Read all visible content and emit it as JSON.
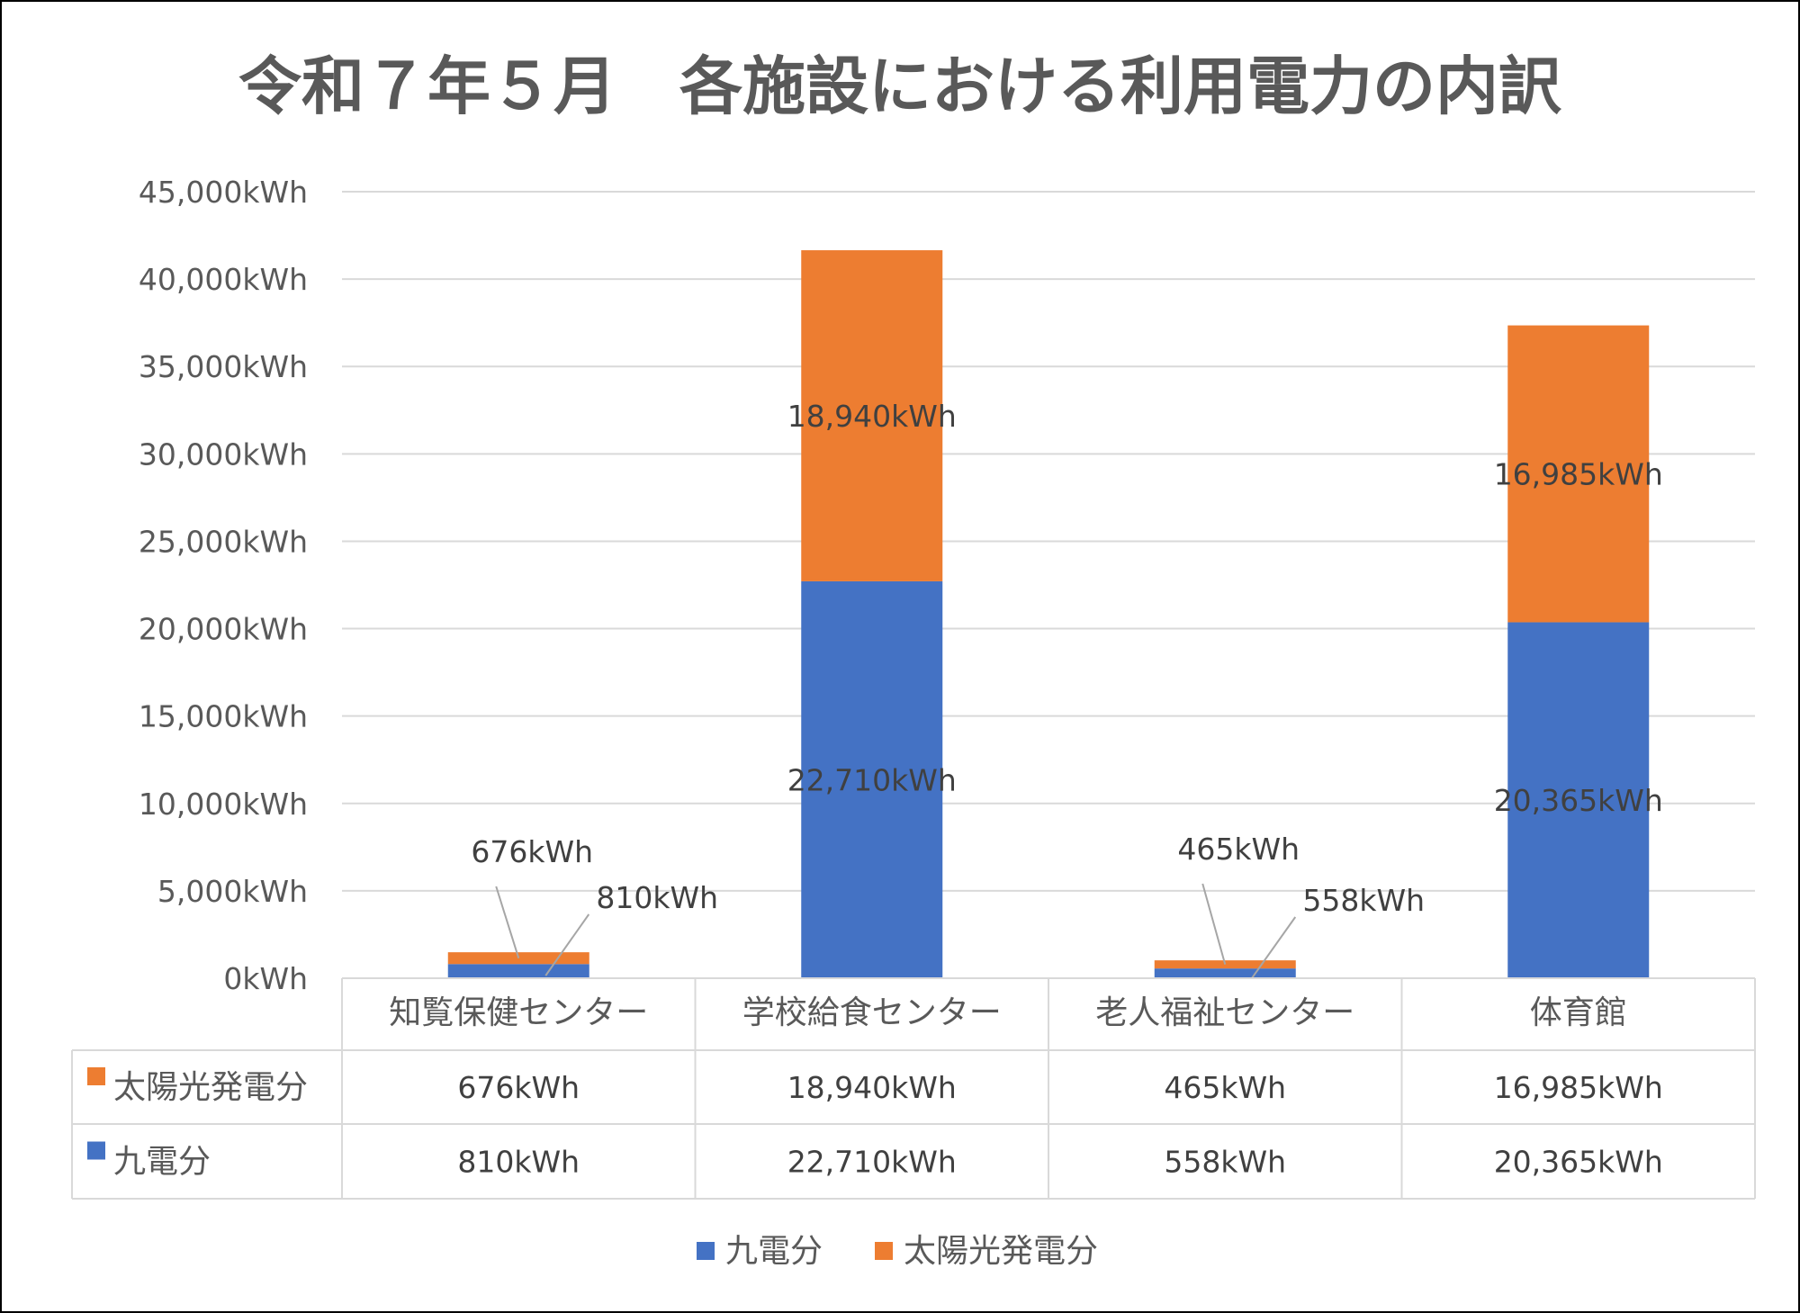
{
  "chart_data": {
    "type": "bar",
    "stacked": true,
    "title": "令和７年５月　各施設における利用電力の内訳",
    "categories": [
      "知覧保健センター",
      "学校給食センター",
      "老人福祉センター",
      "体育館"
    ],
    "series": [
      {
        "name": "九電分",
        "color": "#4472C4",
        "values": [
          810,
          22710,
          558,
          20365
        ],
        "labels": [
          "810kWh",
          "22,710kWh",
          "558kWh",
          "20,365kWh"
        ]
      },
      {
        "name": "太陽光発電分",
        "color": "#ED7D31",
        "values": [
          676,
          18940,
          465,
          16985
        ],
        "labels": [
          "676kWh",
          "18,940kWh",
          "465kWh",
          "16,985kWh"
        ]
      }
    ],
    "ylim": [
      0,
      45000
    ],
    "yticks": [
      0,
      5000,
      10000,
      15000,
      20000,
      25000,
      30000,
      35000,
      40000,
      45000
    ],
    "ytick_labels": [
      "0kWh",
      "5,000kWh",
      "10,000kWh",
      "15,000kWh",
      "20,000kWh",
      "25,000kWh",
      "30,000kWh",
      "35,000kWh",
      "40,000kWh",
      "45,000kWh"
    ],
    "table_rows": [
      {
        "name": "太陽光発電分",
        "color": "#ED7D31",
        "cells": [
          "676kWh",
          "18,940kWh",
          "465kWh",
          "16,985kWh"
        ]
      },
      {
        "name": "九電分",
        "color": "#4472C4",
        "cells": [
          "810kWh",
          "22,710kWh",
          "558kWh",
          "20,365kWh"
        ]
      }
    ],
    "legend": [
      {
        "name": "九電分",
        "color": "#4472C4"
      },
      {
        "name": "太陽光発電分",
        "color": "#ED7D31"
      }
    ],
    "legend_position": "bottom",
    "grid": true
  }
}
